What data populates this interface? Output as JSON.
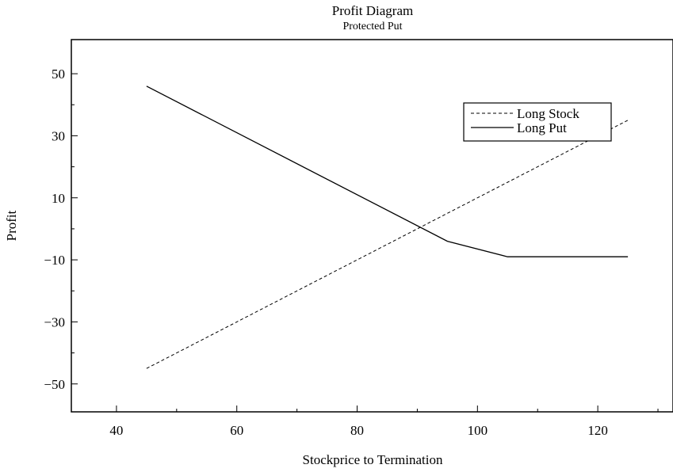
{
  "chart_data": {
    "type": "line",
    "title": "Profit Diagram",
    "subtitle": "Protected Put",
    "xlabel": "Stockprice to Termination",
    "ylabel": "Profit",
    "xlim": [
      32.5,
      132.5
    ],
    "ylim": [
      -59,
      61
    ],
    "x_ticks": [
      40,
      60,
      80,
      100,
      120
    ],
    "y_ticks": [
      50,
      30,
      10,
      -10,
      -30,
      -50
    ],
    "x_tick_labels": [
      "40",
      "60",
      "80",
      "100",
      "120"
    ],
    "y_tick_labels": [
      "50",
      "30",
      "10",
      "−10",
      "−30",
      "−50"
    ],
    "legend_position": "top-right",
    "grid": false,
    "series": [
      {
        "name": "Long Stock",
        "style": "dashed",
        "x": [
          45,
          125
        ],
        "y": [
          -45,
          35
        ]
      },
      {
        "name": "Long Put",
        "style": "solid",
        "x": [
          45,
          95,
          105,
          125
        ],
        "y": [
          46,
          -4,
          -9,
          -9
        ]
      }
    ]
  }
}
